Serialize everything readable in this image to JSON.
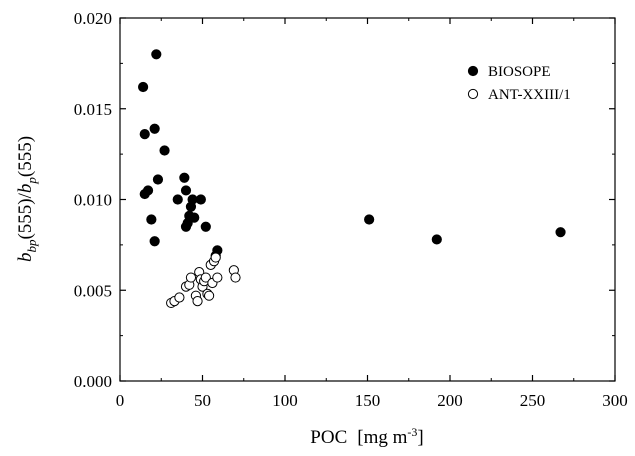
{
  "chart_data": {
    "type": "scatter",
    "xlabel": "POC",
    "xlabel_unit_prefix": "[mg m",
    "xlabel_unit_exp": "-3",
    "xlabel_unit_suffix": "]",
    "ylabel": {
      "b1": "b",
      "s1": "bp",
      "m1": "(555)/",
      "b2": "b",
      "s2": "p",
      "m2": "(555)"
    },
    "xlim": [
      0,
      300
    ],
    "ylim": [
      0.0,
      0.02
    ],
    "xticks": [
      "0",
      "50",
      "100",
      "150",
      "200",
      "250",
      "300"
    ],
    "yticks": [
      "0.000",
      "0.005",
      "0.010",
      "0.015",
      "0.020"
    ],
    "legend_position": "top-right",
    "grid": false,
    "series": [
      {
        "name": "BIOSOPE",
        "marker": "filled-circle",
        "color": "#000000",
        "points": [
          [
            14,
            0.0162
          ],
          [
            15,
            0.0136
          ],
          [
            15,
            0.0103
          ],
          [
            17,
            0.0105
          ],
          [
            19,
            0.0089
          ],
          [
            21,
            0.0139
          ],
          [
            21,
            0.0077
          ],
          [
            22,
            0.018
          ],
          [
            23,
            0.0111
          ],
          [
            27,
            0.0127
          ],
          [
            35,
            0.01
          ],
          [
            39,
            0.0112
          ],
          [
            40,
            0.0105
          ],
          [
            40,
            0.0085
          ],
          [
            41,
            0.0087
          ],
          [
            42,
            0.0091
          ],
          [
            43,
            0.0096
          ],
          [
            44,
            0.01
          ],
          [
            45,
            0.009
          ],
          [
            49,
            0.01
          ],
          [
            52,
            0.0085
          ],
          [
            58,
            0.0069
          ],
          [
            59,
            0.0072
          ],
          [
            151,
            0.0089
          ],
          [
            192,
            0.0078
          ],
          [
            267,
            0.0082
          ]
        ]
      },
      {
        "name": "ANT-XXIII/1",
        "marker": "open-circle",
        "color": "#000000",
        "points": [
          [
            31,
            0.0043
          ],
          [
            33,
            0.0044
          ],
          [
            36,
            0.0046
          ],
          [
            40,
            0.0052
          ],
          [
            42,
            0.0053
          ],
          [
            43,
            0.0057
          ],
          [
            46,
            0.0047
          ],
          [
            47,
            0.0044
          ],
          [
            48,
            0.006
          ],
          [
            49,
            0.0056
          ],
          [
            50,
            0.0052
          ],
          [
            51,
            0.0055
          ],
          [
            52,
            0.0057
          ],
          [
            53,
            0.0048
          ],
          [
            54,
            0.0047
          ],
          [
            55,
            0.0064
          ],
          [
            56,
            0.0054
          ],
          [
            57,
            0.0066
          ],
          [
            58,
            0.0068
          ],
          [
            59,
            0.0057
          ],
          [
            69,
            0.0061
          ],
          [
            70,
            0.0057
          ]
        ]
      }
    ]
  }
}
